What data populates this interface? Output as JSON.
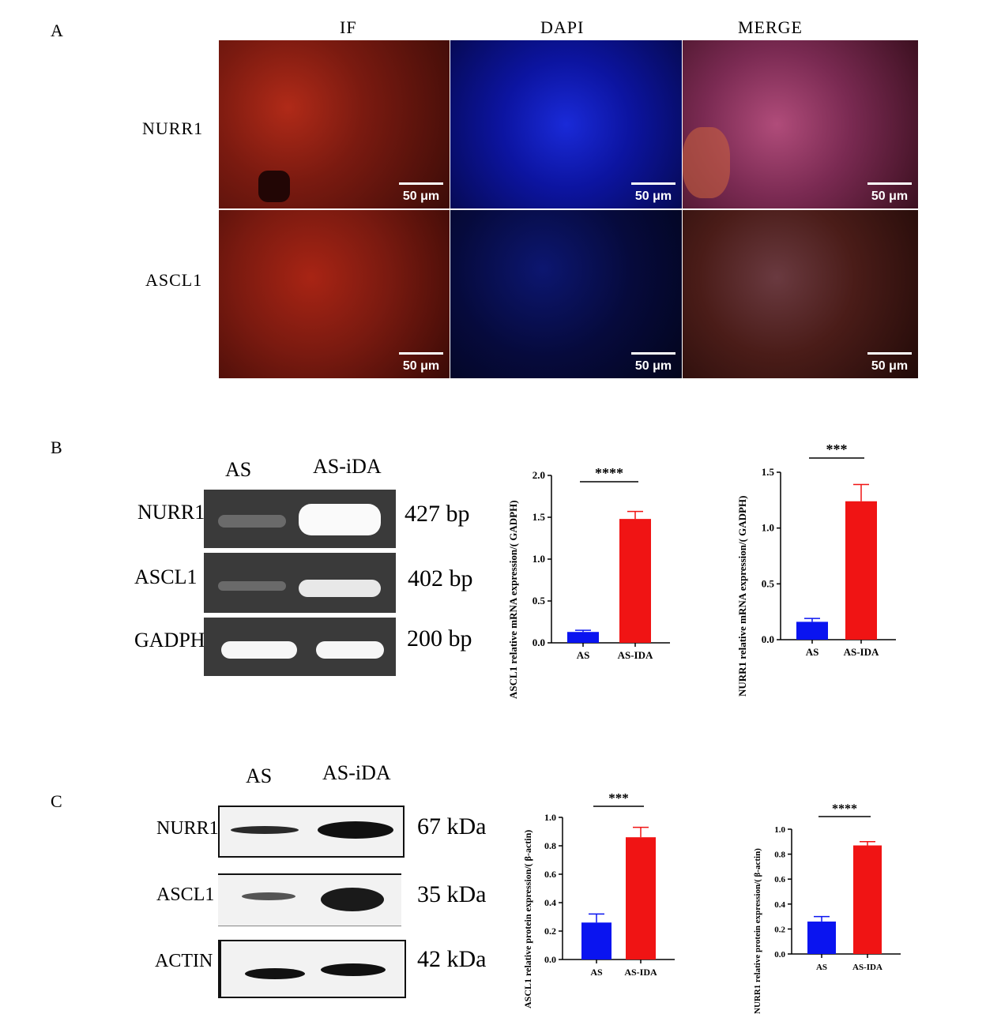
{
  "panels": {
    "a": "A",
    "b": "B",
    "c": "C"
  },
  "panelA": {
    "columns": [
      "IF",
      "DAPI",
      "MERGE"
    ],
    "rows": [
      "NURR1",
      "ASCL1"
    ],
    "scale_label": "50 μm"
  },
  "panelB": {
    "lanes": [
      "AS",
      "AS-iDA"
    ],
    "rows": [
      {
        "name": "NURR1",
        "size": "427 bp"
      },
      {
        "name": "ASCL1",
        "size": "402 bp"
      },
      {
        "name": "GADPH",
        "size": "200 bp"
      }
    ]
  },
  "panelC": {
    "lanes": [
      "AS",
      "AS-iDA"
    ],
    "rows": [
      {
        "name": "NURR1",
        "size": "67 kDa"
      },
      {
        "name": "ASCL1",
        "size": "35 kDa"
      },
      {
        "name": "ACTIN",
        "size": "42 kDa"
      }
    ]
  },
  "colors": {
    "as_bar": "#0a14f0",
    "asida_bar": "#f01414"
  },
  "chart_data": [
    {
      "type": "bar",
      "id": "b1",
      "categories": [
        "AS",
        "AS-IDA"
      ],
      "values": [
        0.13,
        1.48
      ],
      "errors": [
        0.02,
        0.09
      ],
      "ylabel": "ASCL1 relative mRNA expression/( GADPH)",
      "ylim": [
        0,
        2.0
      ],
      "yticks": [
        "0.0",
        "0.5",
        "1.0",
        "1.5",
        "2.0"
      ],
      "significance": "****"
    },
    {
      "type": "bar",
      "id": "b2",
      "categories": [
        "AS",
        "AS-IDA"
      ],
      "values": [
        0.16,
        1.24
      ],
      "errors": [
        0.03,
        0.15
      ],
      "ylabel": "NURR1 relative mRNA expression/( GADPH)",
      "ylim": [
        0,
        1.5
      ],
      "yticks": [
        "0.0",
        "0.5",
        "1.0",
        "1.5"
      ],
      "significance": "***"
    },
    {
      "type": "bar",
      "id": "c1",
      "categories": [
        "AS",
        "AS-IDA"
      ],
      "values": [
        0.26,
        0.86
      ],
      "errors": [
        0.06,
        0.07
      ],
      "ylabel": "ASCL1 relative protein expression/( β-actin)",
      "ylim": [
        0,
        1.0
      ],
      "yticks": [
        "0.0",
        "0.2",
        "0.4",
        "0.6",
        "0.8",
        "1.0"
      ],
      "significance": "***"
    },
    {
      "type": "bar",
      "id": "c2",
      "categories": [
        "AS",
        "AS-IDA"
      ],
      "values": [
        0.26,
        0.87
      ],
      "errors": [
        0.04,
        0.03
      ],
      "ylabel": "NURR1 relative protein expression/( β-actin)",
      "ylim": [
        0,
        1.0
      ],
      "yticks": [
        "0.0",
        "0.2",
        "0.4",
        "0.6",
        "0.8",
        "1.0"
      ],
      "significance": "****"
    }
  ]
}
